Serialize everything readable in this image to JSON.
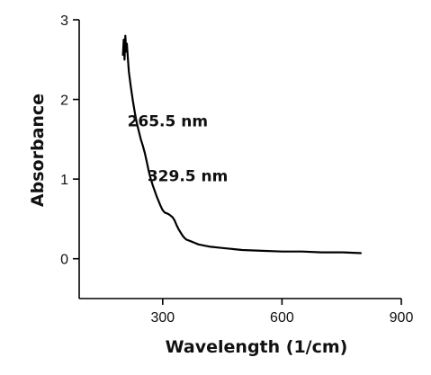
{
  "chart_data": {
    "type": "line",
    "title": "",
    "xlabel": "Wavelength (1/cm)",
    "ylabel": "Absorbance",
    "xlim": [
      90,
      900
    ],
    "ylim": [
      -0.5,
      3
    ],
    "x_ticks": [
      300,
      600,
      900
    ],
    "y_ticks": [
      0,
      1,
      2,
      3
    ],
    "x_tick_labels": [
      "300",
      "600",
      "900"
    ],
    "y_tick_labels": [
      "0",
      "1",
      "2",
      "3"
    ],
    "grid": false,
    "legend": "none",
    "line_color": "#000000",
    "annotations": [
      {
        "text": "265.5 nm",
        "x": 265.5,
        "y": 1.55
      },
      {
        "text": "329.5 nm",
        "x": 329.5,
        "y": 0.75
      }
    ],
    "series": [
      {
        "x": [
          200,
          202,
          204,
          206,
          208,
          210,
          212,
          215,
          220,
          225,
          230,
          235,
          240,
          245,
          250,
          255,
          260,
          265,
          270,
          275,
          280,
          285,
          290,
          295,
          300,
          305,
          310,
          315,
          320,
          325,
          330,
          335,
          340,
          345,
          350,
          355,
          360,
          370,
          380,
          390,
          400,
          420,
          440,
          460,
          480,
          500,
          550,
          600,
          650,
          700,
          750,
          800
        ],
        "values": [
          2.55,
          2.75,
          2.5,
          2.8,
          2.6,
          2.7,
          2.55,
          2.35,
          2.15,
          1.98,
          1.83,
          1.7,
          1.6,
          1.5,
          1.42,
          1.33,
          1.22,
          1.1,
          1.0,
          0.92,
          0.85,
          0.78,
          0.72,
          0.66,
          0.61,
          0.58,
          0.57,
          0.56,
          0.54,
          0.52,
          0.48,
          0.42,
          0.37,
          0.33,
          0.29,
          0.26,
          0.24,
          0.22,
          0.2,
          0.18,
          0.17,
          0.15,
          0.14,
          0.13,
          0.12,
          0.11,
          0.1,
          0.09,
          0.09,
          0.08,
          0.08,
          0.07
        ]
      }
    ]
  }
}
